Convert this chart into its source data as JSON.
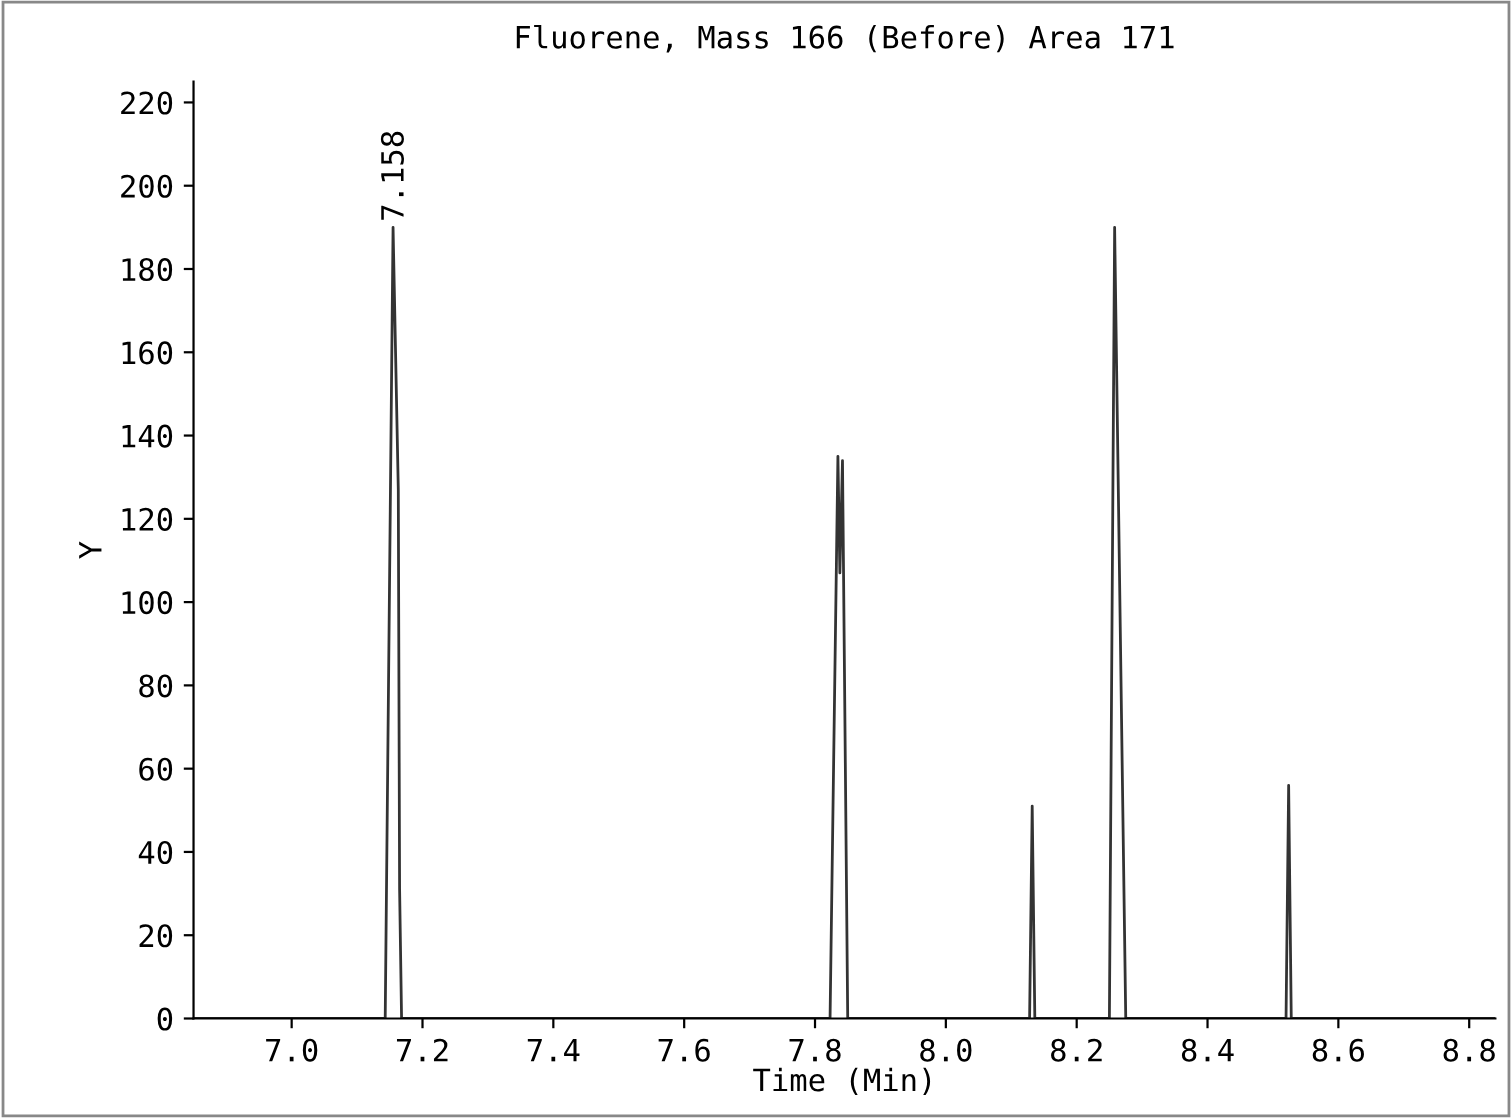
{
  "chart_data": {
    "type": "line",
    "title": "Fluorene, Mass 166 (Before) Area 171",
    "xlabel": "Time (Min)",
    "ylabel": "Y",
    "series": [
      {
        "color": "#333333",
        "x": [
          6.85,
          7.143,
          7.155,
          7.163,
          7.165,
          7.168,
          7.823,
          7.835,
          7.838,
          7.842,
          7.85,
          8.128,
          8.132,
          8.136,
          8.25,
          8.258,
          8.275,
          8.52,
          8.524,
          8.528,
          8.84
        ],
        "values": [
          0,
          0,
          190,
          127,
          31,
          0,
          0,
          135,
          107,
          134,
          0,
          0,
          51,
          0,
          0,
          190,
          0,
          0,
          56,
          0,
          0
        ]
      }
    ],
    "annotations": [
      {
        "text": "7.158",
        "x": 7.158,
        "y": 190
      }
    ],
    "xlim": [
      6.85,
      8.84
    ],
    "ylim": [
      0,
      225
    ],
    "xticks": [
      {
        "value": 7.0,
        "label": "7.0"
      },
      {
        "value": 7.2,
        "label": "7.2"
      },
      {
        "value": 7.4,
        "label": "7.4"
      },
      {
        "value": 7.6,
        "label": "7.6"
      },
      {
        "value": 7.8,
        "label": "7.8"
      },
      {
        "value": 8.0,
        "label": "8.0"
      },
      {
        "value": 8.2,
        "label": "8.2"
      },
      {
        "value": 8.4,
        "label": "8.4"
      },
      {
        "value": 8.6,
        "label": "8.6"
      },
      {
        "value": 8.8,
        "label": "8.8"
      }
    ],
    "yticks": [
      0,
      20,
      40,
      60,
      80,
      100,
      120,
      140,
      160,
      180,
      200,
      220
    ],
    "grid": false,
    "legend": false,
    "marker": "none",
    "line_style": "solid"
  }
}
